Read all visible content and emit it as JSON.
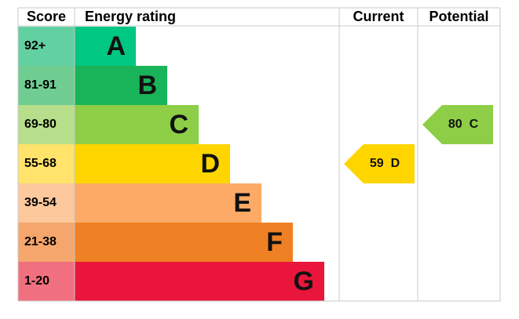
{
  "header": {
    "score": "Score",
    "rating": "Energy rating",
    "current": "Current",
    "potential": "Potential"
  },
  "bands": [
    {
      "score": "92+",
      "letter": "A",
      "color": "#00c781",
      "score_color": "#63d0a2"
    },
    {
      "score": "81-91",
      "letter": "B",
      "color": "#19b459",
      "score_color": "#6fcd92"
    },
    {
      "score": "69-80",
      "letter": "C",
      "color": "#8dce46",
      "score_color": "#b7de8b"
    },
    {
      "score": "55-68",
      "letter": "D",
      "color": "#ffd500",
      "score_color": "#ffe36a"
    },
    {
      "score": "39-54",
      "letter": "E",
      "color": "#fcaa65",
      "score_color": "#fdc89c"
    },
    {
      "score": "21-38",
      "letter": "F",
      "color": "#ef8023",
      "score_color": "#f4a66c"
    },
    {
      "score": "1-20",
      "letter": "G",
      "color": "#e9153b",
      "score_color": "#f1707f"
    }
  ],
  "current": {
    "value": 59,
    "letter": "D"
  },
  "potential": {
    "value": 80,
    "letter": "C"
  }
}
